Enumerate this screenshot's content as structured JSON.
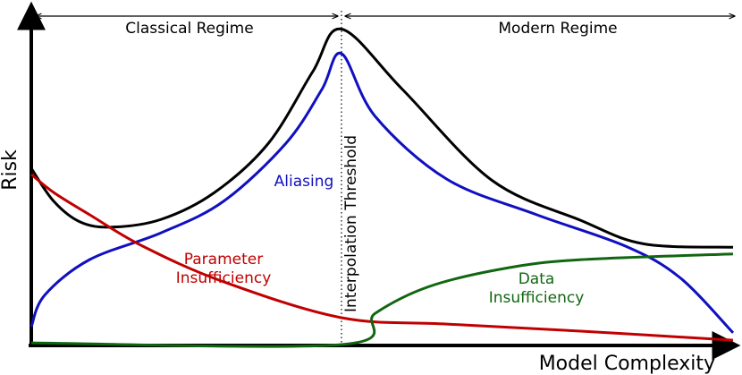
{
  "chart_data": {
    "type": "line",
    "xlabel": "Model Complexity",
    "ylabel": "Risk",
    "xlim": [
      0,
      100
    ],
    "ylim": [
      0,
      100
    ],
    "threshold": 44.2,
    "threshold_label": "Interpolation Threshold",
    "regions": [
      "Classical Regime",
      "Modern Regime"
    ],
    "series": [
      {
        "color": "#000000",
        "x": [
          0,
          3.2,
          7,
          11.5,
          18.5,
          26.1,
          33.8,
          40.1,
          44.2,
          52.9,
          65.6,
          78.3,
          87.3,
          100
        ],
        "values": [
          52.5,
          42.7,
          36.5,
          35,
          37.3,
          45.3,
          60,
          81.3,
          94,
          76,
          49,
          37,
          30,
          29
        ]
      },
      {
        "name": "Aliasing",
        "color": "#1010c0",
        "x": [
          0,
          1.9,
          8.3,
          18.5,
          27.4,
          36.3,
          41.4,
          44.2,
          49,
          59.2,
          72,
          84.7,
          92.4,
          100
        ],
        "values": [
          5.3,
          14.7,
          25.3,
          33.3,
          42.7,
          60,
          76,
          86.7,
          68,
          49.3,
          38.7,
          29.3,
          20,
          3.5
        ]
      },
      {
        "name": "Parameter Insufficiency",
        "color": "#c00000",
        "x": [
          0,
          3.2,
          8.3,
          15.9,
          27.4,
          44.2,
          59.2,
          78.3,
          100
        ],
        "values": [
          50.7,
          45.3,
          38.7,
          29.3,
          18.7,
          8,
          6.1,
          4,
          1.3
        ]
      },
      {
        "name": "Data Insufficiency",
        "color": "#116611",
        "x": [
          0,
          44.2,
          49,
          56.7,
          67.5,
          78.3,
          100
        ],
        "values": [
          0.5,
          0,
          9.3,
          17.3,
          22.7,
          25.3,
          27
        ]
      }
    ]
  }
}
